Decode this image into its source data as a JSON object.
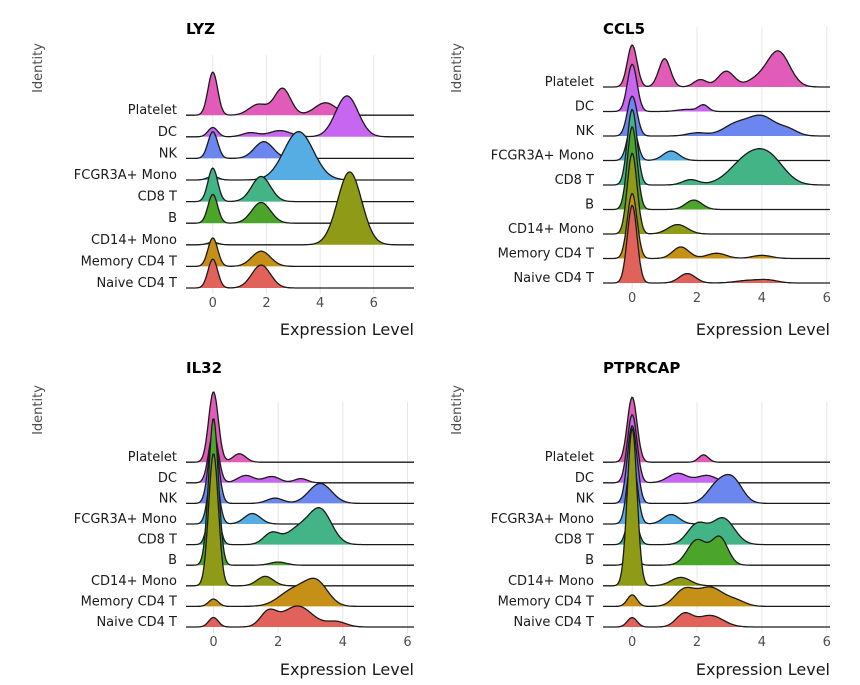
{
  "chart_data": [
    {
      "type": "ridgeline",
      "title": "LYZ",
      "xlabel": "Expression Level",
      "ylabel": "Identity",
      "xlim": [
        -1.0,
        7.5
      ],
      "xticks": [
        0,
        2,
        4,
        6
      ],
      "categories": [
        "Naive CD4 T",
        "Memory CD4 T",
        "CD14+ Mono",
        "B",
        "CD8 T",
        "FCGR3A+ Mono",
        "NK",
        "DC",
        "Platelet"
      ],
      "colors": [
        "#e0625a",
        "#c69016",
        "#8f9a16",
        "#4aa52a",
        "#43b486",
        "#55ade4",
        "#6c86ef",
        "#c766f0",
        "#e05cb8"
      ],
      "series": [
        {
          "name": "Naive CD4 T",
          "components": [
            [
              0,
              0.18,
              0.93
            ],
            [
              1.8,
              0.35,
              0.74
            ]
          ]
        },
        {
          "name": "Memory CD4 T",
          "components": [
            [
              0,
              0.18,
              0.92
            ],
            [
              1.8,
              0.35,
              0.49
            ]
          ]
        },
        {
          "name": "CD14+ Mono",
          "components": [
            [
              0,
              0.2,
              0.08
            ],
            [
              5.1,
              0.45,
              2.35
            ]
          ]
        },
        {
          "name": "B",
          "components": [
            [
              0,
              0.18,
              0.93
            ],
            [
              1.8,
              0.35,
              0.67
            ]
          ]
        },
        {
          "name": "CD8 T",
          "components": [
            [
              0,
              0.18,
              1.08
            ],
            [
              1.8,
              0.35,
              0.81
            ]
          ]
        },
        {
          "name": "FCGR3A+ Mono",
          "components": [
            [
              0,
              0.2,
              0.12
            ],
            [
              3.2,
              0.55,
              1.56
            ]
          ]
        },
        {
          "name": "NK",
          "components": [
            [
              0,
              0.18,
              0.86
            ],
            [
              1.9,
              0.35,
              0.54
            ]
          ]
        },
        {
          "name": "DC",
          "components": [
            [
              0,
              0.18,
              0.3
            ],
            [
              1.4,
              0.3,
              0.13
            ],
            [
              2.5,
              0.4,
              0.2
            ],
            [
              5.0,
              0.42,
              1.32
            ]
          ]
        },
        {
          "name": "Platelet",
          "components": [
            [
              0,
              0.18,
              1.39
            ],
            [
              1.7,
              0.35,
              0.35
            ],
            [
              2.6,
              0.3,
              0.86
            ],
            [
              4.2,
              0.4,
              0.4
            ]
          ]
        }
      ]
    },
    {
      "type": "ridgeline",
      "title": "CCL5",
      "xlabel": "Expression Level",
      "ylabel": "Identity",
      "xlim": [
        -0.9,
        6.1
      ],
      "xticks": [
        0,
        2,
        4,
        6
      ],
      "categories": [
        "Naive CD4 T",
        "Memory CD4 T",
        "CD14+ Mono",
        "B",
        "CD8 T",
        "FCGR3A+ Mono",
        "NK",
        "DC",
        "Platelet"
      ],
      "colors": [
        "#e0625a",
        "#c69016",
        "#8f9a16",
        "#4aa52a",
        "#43b486",
        "#55ade4",
        "#6c86ef",
        "#c766f0",
        "#e05cb8"
      ],
      "series": [
        {
          "name": "Naive CD4 T",
          "components": [
            [
              0,
              0.15,
              3.7
            ],
            [
              1.7,
              0.25,
              0.45
            ],
            [
              3.6,
              0.4,
              0.12
            ],
            [
              4.2,
              0.3,
              0.12
            ]
          ]
        },
        {
          "name": "Memory CD4 T",
          "components": [
            [
              0,
              0.15,
              3.1
            ],
            [
              1.5,
              0.25,
              0.55
            ],
            [
              2.6,
              0.3,
              0.25
            ],
            [
              4.0,
              0.3,
              0.15
            ]
          ]
        },
        {
          "name": "CD14+ Mono",
          "components": [
            [
              0,
              0.15,
              3.85
            ],
            [
              1.4,
              0.3,
              0.45
            ]
          ]
        },
        {
          "name": "B",
          "components": [
            [
              0,
              0.15,
              3.95
            ],
            [
              1.9,
              0.25,
              0.45
            ]
          ]
        },
        {
          "name": "CD8 T",
          "components": [
            [
              0,
              0.15,
              3.6
            ],
            [
              1.8,
              0.25,
              0.25
            ],
            [
              3.6,
              0.55,
              1.3
            ],
            [
              4.3,
              0.45,
              0.9
            ]
          ]
        },
        {
          "name": "FCGR3A+ Mono",
          "components": [
            [
              0,
              0.15,
              1.75
            ],
            [
              1.2,
              0.25,
              0.45
            ]
          ]
        },
        {
          "name": "NK",
          "components": [
            [
              0,
              0.15,
              1.9
            ],
            [
              2.0,
              0.3,
              0.15
            ],
            [
              3.2,
              0.4,
              0.55
            ],
            [
              4.0,
              0.4,
              0.9
            ],
            [
              4.8,
              0.3,
              0.3
            ]
          ]
        },
        {
          "name": "DC",
          "components": [
            [
              0,
              0.15,
              2.25
            ],
            [
              1.7,
              0.3,
              0.1
            ],
            [
              2.2,
              0.15,
              0.3
            ]
          ]
        },
        {
          "name": "Platelet",
          "components": [
            [
              0,
              0.15,
              2.0
            ],
            [
              1.0,
              0.18,
              1.35
            ],
            [
              2.1,
              0.2,
              0.35
            ],
            [
              2.9,
              0.25,
              0.75
            ],
            [
              4.5,
              0.35,
              1.7
            ],
            [
              3.8,
              0.3,
              0.3
            ]
          ]
        }
      ]
    },
    {
      "type": "ridgeline",
      "title": "IL32",
      "xlabel": "Expression Level",
      "ylabel": "Identity",
      "xlim": [
        -0.85,
        6.2
      ],
      "xticks": [
        0,
        2,
        4,
        6
      ],
      "categories": [
        "Naive CD4 T",
        "Memory CD4 T",
        "CD14+ Mono",
        "B",
        "CD8 T",
        "FCGR3A+ Mono",
        "NK",
        "DC",
        "Platelet"
      ],
      "colors": [
        "#e0625a",
        "#c69016",
        "#8f9a16",
        "#4aa52a",
        "#43b486",
        "#55ade4",
        "#6c86ef",
        "#c766f0",
        "#e05cb8"
      ],
      "series": [
        {
          "name": "Naive CD4 T",
          "components": [
            [
              0,
              0.15,
              0.45
            ],
            [
              1.7,
              0.25,
              0.7
            ],
            [
              2.6,
              0.45,
              1.0
            ],
            [
              3.8,
              0.3,
              0.25
            ]
          ]
        },
        {
          "name": "Memory CD4 T",
          "components": [
            [
              0,
              0.15,
              0.35
            ],
            [
              2.5,
              0.45,
              0.8
            ],
            [
              3.2,
              0.35,
              1.05
            ]
          ]
        },
        {
          "name": "CD14+ Mono",
          "components": [
            [
              0,
              0.15,
              6.3
            ],
            [
              1.6,
              0.25,
              0.45
            ]
          ]
        },
        {
          "name": "B",
          "components": [
            [
              0,
              0.15,
              7.0
            ],
            [
              2.0,
              0.25,
              0.15
            ]
          ]
        },
        {
          "name": "CD8 T",
          "components": [
            [
              0,
              0.15,
              2.7
            ],
            [
              1.8,
              0.25,
              0.55
            ],
            [
              2.6,
              0.35,
              0.7
            ],
            [
              3.3,
              0.35,
              1.65
            ]
          ]
        },
        {
          "name": "FCGR3A+ Mono",
          "components": [
            [
              0,
              0.15,
              2.9
            ],
            [
              1.2,
              0.25,
              0.5
            ]
          ]
        },
        {
          "name": "NK",
          "components": [
            [
              0,
              0.15,
              3.4
            ],
            [
              1.9,
              0.25,
              0.25
            ],
            [
              3.3,
              0.35,
              0.95
            ]
          ]
        },
        {
          "name": "DC",
          "components": [
            [
              0,
              0.15,
              2.4
            ],
            [
              1.0,
              0.25,
              0.35
            ],
            [
              1.8,
              0.25,
              0.3
            ],
            [
              2.7,
              0.2,
              0.2
            ]
          ]
        },
        {
          "name": "Platelet",
          "components": [
            [
              0,
              0.15,
              3.35
            ],
            [
              0.8,
              0.2,
              0.4
            ]
          ]
        }
      ]
    },
    {
      "type": "ridgeline",
      "title": "PTPRCAP",
      "xlabel": "Expression Level",
      "ylabel": "Identity",
      "xlim": [
        -0.9,
        6.1
      ],
      "xticks": [
        0,
        2,
        4,
        6
      ],
      "categories": [
        "Naive CD4 T",
        "Memory CD4 T",
        "CD14+ Mono",
        "B",
        "CD8 T",
        "FCGR3A+ Mono",
        "NK",
        "DC",
        "Platelet"
      ],
      "colors": [
        "#e0625a",
        "#c69016",
        "#8f9a16",
        "#4aa52a",
        "#43b486",
        "#55ade4",
        "#6c86ef",
        "#c766f0",
        "#e05cb8"
      ],
      "series": [
        {
          "name": "Naive CD4 T",
          "components": [
            [
              0,
              0.15,
              0.45
            ],
            [
              1.6,
              0.25,
              0.6
            ],
            [
              2.4,
              0.4,
              0.55
            ]
          ]
        },
        {
          "name": "Memory CD4 T",
          "components": [
            [
              0,
              0.15,
              0.55
            ],
            [
              1.6,
              0.3,
              0.75
            ],
            [
              2.4,
              0.4,
              0.9
            ],
            [
              3.2,
              0.3,
              0.25
            ]
          ]
        },
        {
          "name": "CD14+ Mono",
          "components": [
            [
              0,
              0.15,
              7.5
            ],
            [
              1.5,
              0.3,
              0.4
            ]
          ]
        },
        {
          "name": "B",
          "components": [
            [
              0,
              0.15,
              0.55
            ],
            [
              2.0,
              0.3,
              1.2
            ],
            [
              2.7,
              0.25,
              1.3
            ]
          ]
        },
        {
          "name": "CD8 T",
          "components": [
            [
              0,
              0.15,
              1.8
            ],
            [
              2.0,
              0.3,
              0.95
            ],
            [
              2.8,
              0.35,
              1.25
            ]
          ]
        },
        {
          "name": "FCGR3A+ Mono",
          "components": [
            [
              0,
              0.15,
              3.3
            ],
            [
              1.2,
              0.25,
              0.45
            ]
          ]
        },
        {
          "name": "NK",
          "components": [
            [
              0,
              0.15,
              3.7
            ],
            [
              2.6,
              0.3,
              0.8
            ],
            [
              3.1,
              0.3,
              1.1
            ]
          ]
        },
        {
          "name": "DC",
          "components": [
            [
              0,
              0.15,
              3.25
            ],
            [
              1.4,
              0.3,
              0.45
            ],
            [
              2.3,
              0.3,
              0.35
            ]
          ]
        },
        {
          "name": "Platelet",
          "components": [
            [
              0,
              0.15,
              3.1
            ],
            [
              2.2,
              0.15,
              0.35
            ]
          ]
        }
      ]
    }
  ]
}
